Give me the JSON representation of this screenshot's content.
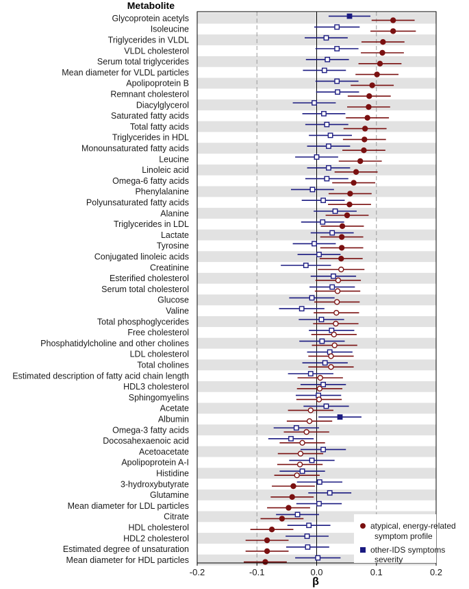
{
  "chart_data": {
    "type": "scatter",
    "subtype": "forest-plot",
    "row_header": "Metabolite",
    "xlabel": "β",
    "xlim": [
      -0.2,
      0.2
    ],
    "xticks": [
      "-0.2",
      "-0.1",
      "0.0",
      "0.1",
      "0.2"
    ],
    "xtick_values": [
      -0.2,
      -0.1,
      0.0,
      0.1,
      0.2
    ],
    "dashed_gridlines_at": [
      -0.1,
      0.1,
      0.2
    ],
    "zero_line_at": 0.0,
    "row_striping": "alternating grey",
    "legend_position": "bottom-right",
    "series": [
      {
        "name": "atypical, energy-related symptom profile",
        "color": "#7a1010",
        "marker": "circle"
      },
      {
        "name": "other-IDS symptoms severity",
        "color": "#1a1a80",
        "marker": "square"
      }
    ],
    "legend_labels": [
      [
        "atypical, energy-related",
        "symptom profile"
      ],
      [
        "other-IDS symptoms",
        "severity"
      ]
    ],
    "note": "Filled marker = significant, open marker = not significant",
    "rows": [
      {
        "label": "Glycoprotein acetyls",
        "a": [
          0.128,
          0.092,
          0.164,
          true
        ],
        "b": [
          0.055,
          0.02,
          0.09,
          true
        ]
      },
      {
        "label": "Isoleucine",
        "a": [
          0.128,
          0.09,
          0.166,
          true
        ],
        "b": [
          0.034,
          -0.004,
          0.072,
          false
        ]
      },
      {
        "label": "Triglycerides in VLDL",
        "a": [
          0.111,
          0.075,
          0.147,
          true
        ],
        "b": [
          0.016,
          -0.02,
          0.052,
          false
        ]
      },
      {
        "label": "VLDL cholesterol",
        "a": [
          0.11,
          0.074,
          0.146,
          true
        ],
        "b": [
          0.034,
          -0.002,
          0.07,
          false
        ]
      },
      {
        "label": "Serum total triglycerides",
        "a": [
          0.106,
          0.07,
          0.142,
          true
        ],
        "b": [
          0.018,
          -0.018,
          0.054,
          false
        ]
      },
      {
        "label": "Mean diameter for VLDL particles",
        "a": [
          0.101,
          0.065,
          0.137,
          true
        ],
        "b": [
          0.013,
          -0.023,
          0.049,
          false
        ]
      },
      {
        "label": "Apolipoprotein B",
        "a": [
          0.093,
          0.057,
          0.129,
          true
        ],
        "b": [
          0.034,
          -0.002,
          0.07,
          false
        ]
      },
      {
        "label": "Remnant cholesterol",
        "a": [
          0.088,
          0.052,
          0.124,
          true
        ],
        "b": [
          0.035,
          -0.001,
          0.071,
          false
        ]
      },
      {
        "label": "Diacylglycerol",
        "a": [
          0.087,
          0.051,
          0.123,
          true
        ],
        "b": [
          -0.004,
          -0.04,
          0.032,
          false
        ]
      },
      {
        "label": "Saturated fatty acids",
        "a": [
          0.085,
          0.049,
          0.121,
          true
        ],
        "b": [
          0.012,
          -0.024,
          0.048,
          false
        ]
      },
      {
        "label": "Total fatty acids",
        "a": [
          0.081,
          0.045,
          0.117,
          true
        ],
        "b": [
          0.017,
          -0.019,
          0.053,
          false
        ]
      },
      {
        "label": "Triglycerides in HDL",
        "a": [
          0.08,
          0.044,
          0.116,
          true
        ],
        "b": [
          0.023,
          -0.013,
          0.059,
          false
        ]
      },
      {
        "label": "Monounsaturated fatty acids",
        "a": [
          0.079,
          0.043,
          0.115,
          true
        ],
        "b": [
          0.02,
          -0.016,
          0.056,
          false
        ]
      },
      {
        "label": "Leucine",
        "a": [
          0.073,
          0.037,
          0.109,
          true
        ],
        "b": [
          0.0,
          -0.036,
          0.036,
          false
        ]
      },
      {
        "label": "Linoleic acid",
        "a": [
          0.066,
          0.03,
          0.102,
          true
        ],
        "b": [
          0.02,
          -0.016,
          0.056,
          false
        ]
      },
      {
        "label": "Omega-6 fatty acids",
        "a": [
          0.062,
          0.026,
          0.098,
          true
        ],
        "b": [
          0.017,
          -0.019,
          0.053,
          false
        ]
      },
      {
        "label": "Phenylalanine",
        "a": [
          0.056,
          0.02,
          0.092,
          true
        ],
        "b": [
          -0.007,
          -0.043,
          0.029,
          false
        ]
      },
      {
        "label": "Polyunsaturated fatty acids",
        "a": [
          0.055,
          0.019,
          0.091,
          true
        ],
        "b": [
          0.011,
          -0.025,
          0.047,
          false
        ]
      },
      {
        "label": "Alanine",
        "a": [
          0.051,
          0.015,
          0.087,
          true
        ],
        "b": [
          0.031,
          -0.005,
          0.067,
          false
        ]
      },
      {
        "label": "Triglycerides in LDL",
        "a": [
          0.043,
          0.007,
          0.079,
          true
        ],
        "b": [
          0.01,
          -0.026,
          0.046,
          false
        ]
      },
      {
        "label": "Lactate",
        "a": [
          0.042,
          0.006,
          0.078,
          true
        ],
        "b": [
          0.026,
          -0.01,
          0.062,
          false
        ]
      },
      {
        "label": "Tyrosine",
        "a": [
          0.042,
          0.006,
          0.078,
          true
        ],
        "b": [
          -0.004,
          -0.04,
          0.032,
          false
        ]
      },
      {
        "label": "Conjugated linoleic acids",
        "a": [
          0.041,
          0.005,
          0.077,
          true
        ],
        "b": [
          0.004,
          -0.032,
          0.04,
          false
        ]
      },
      {
        "label": "Creatinine",
        "a": [
          0.041,
          0.002,
          0.08,
          false
        ],
        "b": [
          -0.018,
          -0.06,
          0.024,
          false
        ]
      },
      {
        "label": "Esterified cholesterol",
        "a": [
          0.036,
          -0.002,
          0.074,
          false
        ],
        "b": [
          0.028,
          -0.01,
          0.066,
          false
        ]
      },
      {
        "label": "Serum total cholesterol",
        "a": [
          0.035,
          -0.003,
          0.073,
          false
        ],
        "b": [
          0.026,
          -0.012,
          0.064,
          false
        ]
      },
      {
        "label": "Glucose",
        "a": [
          0.034,
          -0.004,
          0.072,
          false
        ],
        "b": [
          -0.008,
          -0.046,
          0.03,
          false
        ]
      },
      {
        "label": "Valine",
        "a": [
          0.033,
          -0.005,
          0.071,
          false
        ],
        "b": [
          -0.025,
          -0.063,
          0.013,
          false
        ]
      },
      {
        "label": "Total phosphoglycerides",
        "a": [
          0.032,
          -0.006,
          0.07,
          false
        ],
        "b": [
          0.008,
          -0.03,
          0.046,
          false
        ]
      },
      {
        "label": "Free cholesterol",
        "a": [
          0.029,
          -0.009,
          0.067,
          false
        ],
        "b": [
          0.025,
          -0.013,
          0.063,
          false
        ]
      },
      {
        "label": "Phosphatidylcholine and other cholines",
        "a": [
          0.03,
          -0.008,
          0.068,
          false
        ],
        "b": [
          0.009,
          -0.029,
          0.047,
          false
        ]
      },
      {
        "label": "LDL cholesterol",
        "a": [
          0.024,
          -0.014,
          0.062,
          false
        ],
        "b": [
          0.022,
          -0.016,
          0.06,
          false
        ]
      },
      {
        "label": "Total cholines",
        "a": [
          0.024,
          -0.014,
          0.062,
          false
        ],
        "b": [
          0.014,
          -0.024,
          0.052,
          false
        ]
      },
      {
        "label": "Estimated description of fatty acid chain length",
        "a": [
          0.006,
          -0.032,
          0.044,
          false
        ],
        "b": [
          -0.01,
          -0.048,
          0.028,
          false
        ]
      },
      {
        "label": "HDL3 cholesterol",
        "a": [
          0.005,
          -0.033,
          0.043,
          false
        ],
        "b": [
          0.011,
          -0.027,
          0.049,
          false
        ]
      },
      {
        "label": "Sphingomyelins",
        "a": [
          0.004,
          -0.034,
          0.042,
          false
        ],
        "b": [
          0.003,
          -0.035,
          0.041,
          false
        ]
      },
      {
        "label": "Acetate",
        "a": [
          -0.01,
          -0.048,
          0.028,
          false
        ],
        "b": [
          0.016,
          -0.022,
          0.054,
          false
        ]
      },
      {
        "label": "Albumin",
        "a": [
          -0.012,
          -0.05,
          0.026,
          false
        ],
        "b": [
          0.039,
          0.003,
          0.075,
          true
        ]
      },
      {
        "label": "Omega-3 fatty acids",
        "a": [
          -0.017,
          -0.055,
          0.021,
          false
        ],
        "b": [
          -0.034,
          -0.072,
          0.004,
          false
        ]
      },
      {
        "label": "Docosahexaenoic acid",
        "a": [
          -0.024,
          -0.062,
          0.014,
          false
        ],
        "b": [
          -0.043,
          -0.081,
          -0.005,
          false
        ]
      },
      {
        "label": "Acetoacetate",
        "a": [
          -0.027,
          -0.065,
          0.011,
          false
        ],
        "b": [
          0.011,
          -0.027,
          0.049,
          false
        ]
      },
      {
        "label": "Apolipoprotein A-I",
        "a": [
          -0.028,
          -0.066,
          0.01,
          false
        ],
        "b": [
          -0.008,
          -0.046,
          0.03,
          false
        ]
      },
      {
        "label": "Histidine",
        "a": [
          -0.033,
          -0.071,
          0.005,
          false
        ],
        "b": [
          -0.024,
          -0.062,
          0.014,
          false
        ]
      },
      {
        "label": "3-hydroxybutyrate",
        "a": [
          -0.039,
          -0.075,
          -0.003,
          true
        ],
        "b": [
          0.005,
          -0.033,
          0.043,
          false
        ]
      },
      {
        "label": "Glutamine",
        "a": [
          -0.041,
          -0.077,
          -0.005,
          true
        ],
        "b": [
          0.022,
          -0.014,
          0.058,
          false
        ]
      },
      {
        "label": "Mean diameter for LDL particles",
        "a": [
          -0.047,
          -0.083,
          -0.011,
          true
        ],
        "b": [
          0.004,
          -0.034,
          0.042,
          false
        ]
      },
      {
        "label": "Citrate",
        "a": [
          -0.058,
          -0.094,
          -0.022,
          true
        ],
        "b": [
          -0.032,
          -0.068,
          0.004,
          false
        ]
      },
      {
        "label": "HDL cholesterol",
        "a": [
          -0.075,
          -0.111,
          -0.039,
          true
        ],
        "b": [
          -0.013,
          -0.049,
          0.023,
          false
        ]
      },
      {
        "label": "HDL2 cholesterol",
        "a": [
          -0.083,
          -0.119,
          -0.047,
          true
        ],
        "b": [
          -0.016,
          -0.052,
          0.02,
          false
        ]
      },
      {
        "label": "Estimated degree of unsaturation",
        "a": [
          -0.083,
          -0.119,
          -0.047,
          true
        ],
        "b": [
          -0.015,
          -0.051,
          0.021,
          false
        ]
      },
      {
        "label": "Mean diameter for HDL particles",
        "a": [
          -0.086,
          -0.122,
          -0.05,
          true
        ],
        "b": [
          0.002,
          -0.036,
          0.04,
          false
        ]
      }
    ]
  }
}
